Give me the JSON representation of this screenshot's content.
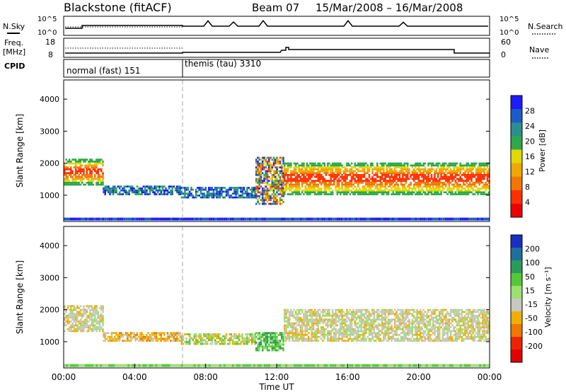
{
  "header": {
    "title": "Blackstone (fitACF)",
    "beam": "Beam 07",
    "date_range": "15/Mar/2008 – 16/Mar/2008"
  },
  "top_panels": {
    "nsky_label": "N.Sky",
    "nsky_ticks": [
      "10^5",
      "10^0"
    ],
    "nsearch_label": "N.Search",
    "nsearch_ticks": [
      "10^5",
      "10^0"
    ],
    "freq_label": "Freq.",
    "freq_unit": "[MHz]",
    "freq_ticks": [
      "18",
      "8"
    ],
    "nave_label": "Nave",
    "nave_ticks": [
      "60",
      "0"
    ],
    "cpid_label": "CPID",
    "cpid_segments": [
      {
        "label": "normal (fast) 151",
        "start_hour": 0.0,
        "end_hour": 6.6
      },
      {
        "label": "themis (tau) 3310",
        "start_hour": 6.6,
        "end_hour": 24.0
      }
    ]
  },
  "chart_data": [
    {
      "type": "heatmap",
      "name": "power",
      "ylabel": "Slant Range [km]",
      "xlabel": "Time UT",
      "x_ticks": [
        "00:00",
        "04:00",
        "08:00",
        "12:00",
        "16:00",
        "20:00",
        "00:00"
      ],
      "xlim_hours": [
        0,
        24
      ],
      "ylim": [
        180,
        4600
      ],
      "y_ticks": [
        1000,
        2000,
        3000,
        4000
      ],
      "colorbar": {
        "label": "Power [dB]",
        "ticks": [
          "4",
          "8",
          "12",
          "16",
          "20",
          "24",
          "28"
        ],
        "colors": [
          "#1c1cff",
          "#1c5cc8",
          "#2a8f8f",
          "#2ea84a",
          "#e0d800",
          "#f0a800",
          "#f07800",
          "#ff3000",
          "#ee0000"
        ]
      },
      "bands": [
        {
          "hours": [
            0.0,
            2.2
          ],
          "range_km": [
            1300,
            2100
          ],
          "intensity": "high"
        },
        {
          "hours": [
            2.2,
            6.6
          ],
          "range_km": [
            1000,
            1300
          ],
          "intensity": "low"
        },
        {
          "hours": [
            6.6,
            10.8
          ],
          "range_km": [
            900,
            1250
          ],
          "intensity": "low"
        },
        {
          "hours": [
            10.8,
            12.4
          ],
          "range_km": [
            700,
            2200
          ],
          "intensity": "mixed"
        },
        {
          "hours": [
            12.4,
            24.0
          ],
          "range_km": [
            1000,
            2000
          ],
          "intensity": "high"
        },
        {
          "hours": [
            0.0,
            24.0
          ],
          "range_km": [
            180,
            350
          ],
          "intensity": "low"
        }
      ]
    },
    {
      "type": "heatmap",
      "name": "velocity",
      "ylabel": "Slant Range [km]",
      "xlabel": "Time UT",
      "x_ticks": [
        "00:00",
        "04:00",
        "08:00",
        "12:00",
        "16:00",
        "20:00",
        "00:00"
      ],
      "xlim_hours": [
        0,
        24
      ],
      "ylim": [
        180,
        4600
      ],
      "y_ticks": [
        1000,
        2000,
        3000,
        4000
      ],
      "colorbar": {
        "label": "Velocity [m s⁻¹]",
        "ticks": [
          "200",
          "100",
          "50",
          "15",
          "-15",
          "-50",
          "-100",
          "-200"
        ],
        "colors": [
          "#1830c0",
          "#1f6f9c",
          "#2c9b5a",
          "#55c838",
          "#9be070",
          "#c8c8c0",
          "#f0b000",
          "#f07800",
          "#ee2200",
          "#e00000"
        ]
      },
      "bands": [
        {
          "hours": [
            0.0,
            2.2
          ],
          "range_km": [
            1300,
            2100
          ],
          "velocity": "near-zero"
        },
        {
          "hours": [
            2.2,
            6.6
          ],
          "range_km": [
            1000,
            1300
          ],
          "velocity": "negative"
        },
        {
          "hours": [
            6.6,
            10.8
          ],
          "range_km": [
            900,
            1250
          ],
          "velocity": "mixed"
        },
        {
          "hours": [
            10.8,
            12.4
          ],
          "range_km": [
            700,
            1300
          ],
          "velocity": "positive"
        },
        {
          "hours": [
            12.4,
            24.0
          ],
          "range_km": [
            1000,
            2000
          ],
          "velocity": "near-zero"
        }
      ]
    }
  ]
}
